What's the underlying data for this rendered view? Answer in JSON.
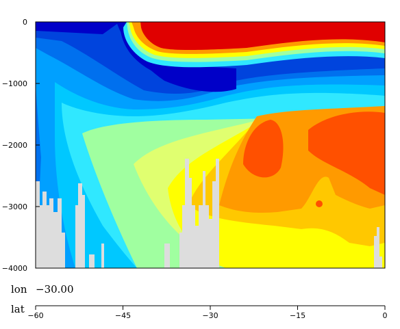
{
  "chart_data": {
    "type": "heatmap",
    "colormap": "rainbow (blue - cyan - green - yellow - orange - red)",
    "grid": false,
    "y_axis": {
      "ticks": [
        0,
        -1000,
        -2000,
        -3000,
        -4000
      ],
      "tick_labels": [
        "0",
        "−1000",
        "−2000",
        "−3000",
        "−4000"
      ],
      "ylim": [
        -4000,
        0
      ]
    },
    "x_axis": {
      "ticks": [
        -60,
        -45,
        -30,
        -15,
        0
      ],
      "tick_labels": [
        "−60",
        "−45",
        "−30",
        "−15",
        "0"
      ],
      "xlim": [
        -60,
        0
      ]
    },
    "annotations": {
      "lon_label": "lon",
      "lon_value": "−30.00",
      "lat_label": "lat"
    },
    "colors": {
      "land_mask": "#dddddd",
      "levels": [
        "#0000c8",
        "#0044dd",
        "#0070ee",
        "#00a0ff",
        "#00c8ff",
        "#30e8ff",
        "#a0ffa0",
        "#e0ff70",
        "#ffff00",
        "#ffc800",
        "#ff9a00",
        "#ff5000",
        "#e00000"
      ]
    }
  }
}
